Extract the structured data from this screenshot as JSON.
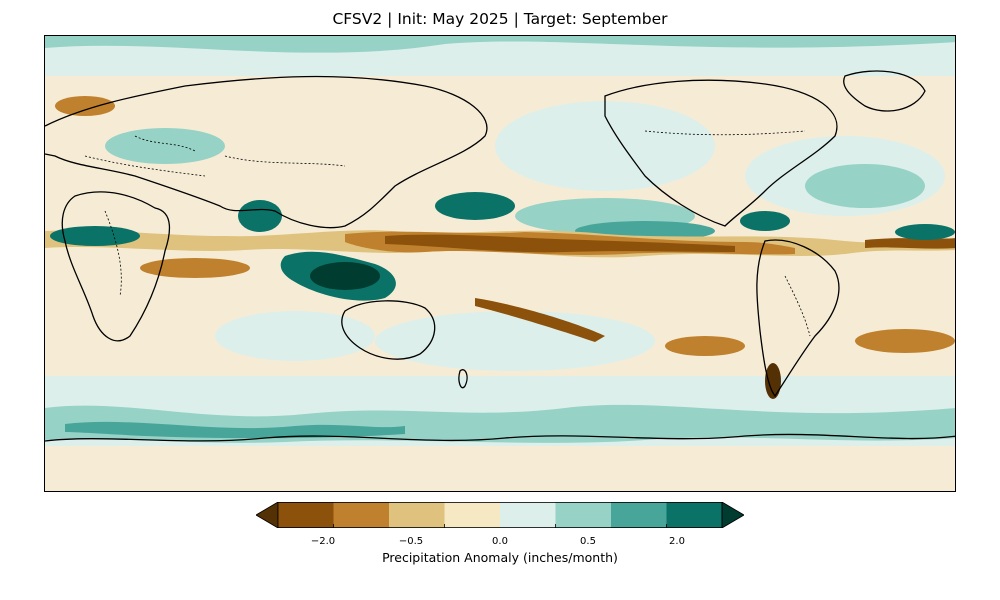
{
  "title": "CFSV2 | Init: May 2025 | Target: September",
  "colorbar": {
    "label": "Precipitation Anomaly (inches/month)",
    "ticks": [
      "−2.0",
      "−0.5",
      "0.0",
      "0.5",
      "2.0"
    ],
    "colors": [
      "#543005",
      "#8c510a",
      "#bf812d",
      "#dfc27d",
      "#f6e8c3",
      "#dcefeb",
      "#96d2c6",
      "#47a59a",
      "#0a7266",
      "#003c30"
    ],
    "extend": "both"
  },
  "map": {
    "projection": "PlateCarree",
    "center_longitude": 180,
    "variable": "Precipitation Anomaly",
    "units": "inches/month",
    "features": [
      "coastlines",
      "country borders (dotted)"
    ]
  }
}
